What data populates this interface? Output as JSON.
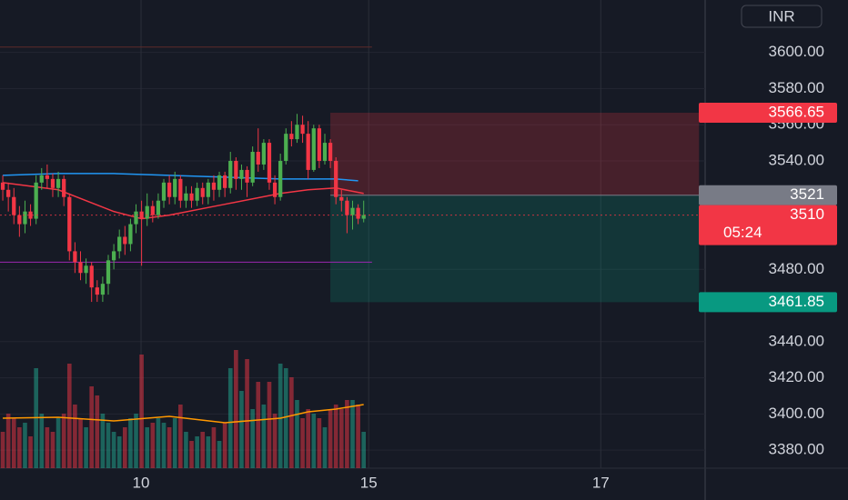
{
  "chart_data": {
    "type": "candlestick",
    "currency": "INR",
    "xlim": [
      -0.5,
      126.5
    ],
    "xticks": [
      {
        "value": 24.9,
        "label": "10"
      },
      {
        "value": 65.9,
        "label": "15"
      },
      {
        "value": 107.7,
        "label": "17"
      }
    ],
    "ylim": [
      3370,
      3629
    ],
    "yticks": [
      {
        "value": 3380,
        "label": "3380.00"
      },
      {
        "value": 3400,
        "label": "3400.00"
      },
      {
        "value": 3420,
        "label": "3420.00"
      },
      {
        "value": 3440,
        "label": "3440.00"
      },
      {
        "value": 3480,
        "label": "3480.00"
      },
      {
        "value": 3540,
        "label": "3540.00"
      },
      {
        "value": 3560,
        "label": "3560.00"
      },
      {
        "value": 3580,
        "label": "3580.00"
      },
      {
        "value": 3600,
        "label": "3600.00"
      }
    ],
    "grid": true,
    "up_color": "#4caf50",
    "down_color": "#f23645",
    "volume_up_color": "#22ab94",
    "volume_down_color": "#f23645",
    "candles": [
      [
        3528,
        3532,
        3518,
        3524
      ],
      [
        3524,
        3528,
        3512,
        3520
      ],
      [
        3520,
        3525,
        3505,
        3510
      ],
      [
        3510,
        3515,
        3498,
        3505
      ],
      [
        3505,
        3518,
        3500,
        3512
      ],
      [
        3512,
        3516,
        3504,
        3508
      ],
      [
        3508,
        3532,
        3505,
        3528
      ],
      [
        3528,
        3536,
        3524,
        3532
      ],
      [
        3532,
        3538,
        3525,
        3530
      ],
      [
        3530,
        3533,
        3520,
        3525
      ],
      [
        3525,
        3534,
        3520,
        3530
      ],
      [
        3530,
        3532,
        3515,
        3520
      ],
      [
        3520,
        3522,
        3485,
        3490
      ],
      [
        3490,
        3495,
        3478,
        3484
      ],
      [
        3484,
        3490,
        3474,
        3478
      ],
      [
        3478,
        3486,
        3472,
        3482
      ],
      [
        3482,
        3484,
        3462,
        3470
      ],
      [
        3470,
        3474,
        3462,
        3466
      ],
      [
        3466,
        3476,
        3462,
        3472
      ],
      [
        3472,
        3488,
        3466,
        3485
      ],
      [
        3485,
        3494,
        3480,
        3490
      ],
      [
        3490,
        3502,
        3486,
        3498
      ],
      [
        3498,
        3504,
        3488,
        3494
      ],
      [
        3494,
        3508,
        3490,
        3505
      ],
      [
        3505,
        3516,
        3500,
        3512
      ],
      [
        3512,
        3518,
        3482,
        3508
      ],
      [
        3508,
        3522,
        3504,
        3515
      ],
      [
        3515,
        3518,
        3506,
        3510
      ],
      [
        3510,
        3522,
        3508,
        3518
      ],
      [
        3518,
        3530,
        3514,
        3528
      ],
      [
        3528,
        3532,
        3516,
        3520
      ],
      [
        3520,
        3534,
        3516,
        3530
      ],
      [
        3530,
        3532,
        3514,
        3518
      ],
      [
        3518,
        3526,
        3514,
        3522
      ],
      [
        3522,
        3526,
        3514,
        3518
      ],
      [
        3518,
        3528,
        3515,
        3525
      ],
      [
        3525,
        3528,
        3516,
        3520
      ],
      [
        3520,
        3530,
        3516,
        3528
      ],
      [
        3528,
        3532,
        3518,
        3524
      ],
      [
        3524,
        3534,
        3520,
        3532
      ],
      [
        3532,
        3534,
        3520,
        3525
      ],
      [
        3525,
        3545,
        3522,
        3540
      ],
      [
        3540,
        3542,
        3524,
        3530
      ],
      [
        3530,
        3538,
        3524,
        3535
      ],
      [
        3535,
        3537,
        3520,
        3528
      ],
      [
        3528,
        3548,
        3526,
        3545
      ],
      [
        3545,
        3558,
        3534,
        3538
      ],
      [
        3538,
        3552,
        3535,
        3550
      ],
      [
        3550,
        3552,
        3524,
        3528
      ],
      [
        3528,
        3532,
        3516,
        3520
      ],
      [
        3520,
        3544,
        3518,
        3540
      ],
      [
        3540,
        3558,
        3538,
        3555
      ],
      [
        3555,
        3562,
        3548,
        3552
      ],
      [
        3552,
        3566,
        3550,
        3560
      ],
      [
        3560,
        3565,
        3550,
        3555
      ],
      [
        3555,
        3562,
        3530,
        3535
      ],
      [
        3535,
        3560,
        3534,
        3558
      ],
      [
        3558,
        3560,
        3536,
        3540
      ],
      [
        3540,
        3555,
        3538,
        3550
      ],
      [
        3550,
        3552,
        3536,
        3540
      ],
      [
        3540,
        3542,
        3516,
        3520
      ],
      [
        3520,
        3524,
        3512,
        3518
      ],
      [
        3518,
        3520,
        3500,
        3510
      ],
      [
        3510,
        3518,
        3502,
        3514
      ],
      [
        3514,
        3516,
        3505,
        3508
      ],
      [
        3508,
        3518,
        3506,
        3510
      ]
    ],
    "vlim": [
      0,
      140
    ],
    "volumes": [
      40,
      60,
      55,
      45,
      50,
      35,
      110,
      60,
      45,
      40,
      55,
      60,
      115,
      70,
      55,
      45,
      90,
      80,
      60,
      50,
      40,
      35,
      45,
      55,
      60,
      125,
      45,
      50,
      55,
      50,
      45,
      55,
      70,
      40,
      30,
      35,
      40,
      35,
      45,
      30,
      50,
      110,
      130,
      85,
      120,
      65,
      95,
      70,
      95,
      60,
      115,
      110,
      100,
      75,
      55,
      65,
      60,
      55,
      45,
      65,
      70,
      65,
      75,
      75,
      70,
      40
    ],
    "lines": [
      {
        "name": "ma-fast",
        "color": "#f23645",
        "x": [
          0,
          10,
          20,
          25,
          30,
          40,
          50,
          55,
          60,
          65
        ],
        "values": [
          3528,
          3524,
          3512,
          3508,
          3510,
          3516,
          3522,
          3524,
          3525,
          3522
        ]
      },
      {
        "name": "ma-slow",
        "color": "#2196f3",
        "x": [
          0,
          10,
          20,
          30,
          40,
          50,
          60,
          64
        ],
        "values": [
          3532,
          3533,
          3533,
          3532,
          3531,
          3530,
          3530,
          3529
        ]
      }
    ],
    "volume_ma": {
      "color": "#ff9800",
      "x": [
        0,
        10,
        20,
        30,
        40,
        50,
        55,
        60,
        65
      ],
      "values": [
        55,
        56,
        52,
        57,
        50,
        55,
        62,
        65,
        70
      ]
    },
    "hlines": [
      {
        "value": 3484,
        "color": "#9c27b0",
        "x": [
          -0.5,
          66.5
        ]
      },
      {
        "value": 3603,
        "color": "#5d2a2a",
        "x": [
          -0.5,
          66.5
        ]
      }
    ],
    "position": {
      "x": [
        59,
        125.4
      ],
      "stop": 3566.65,
      "entry": 3521.0,
      "target": 3461.85
    },
    "last_price": 3510.0,
    "countdown": "05:24"
  }
}
